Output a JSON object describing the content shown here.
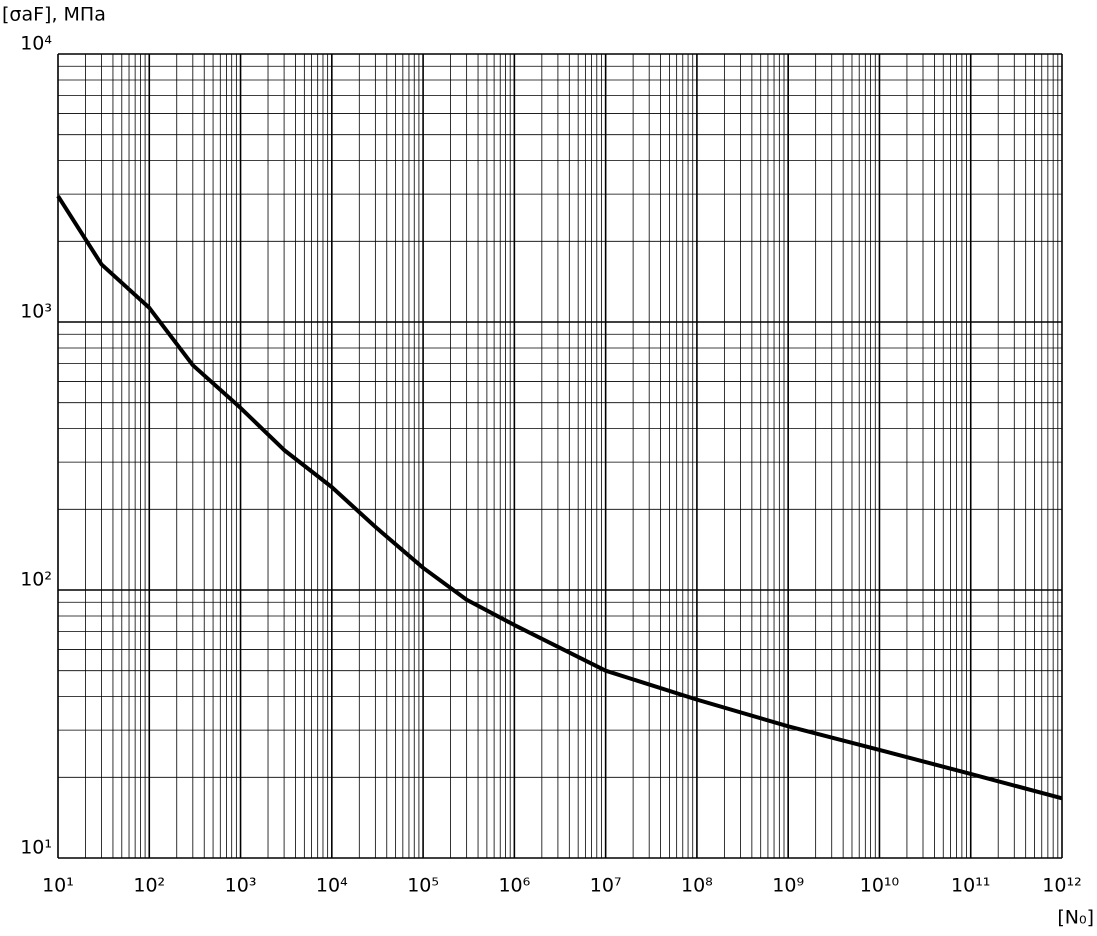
{
  "chart_data": {
    "type": "line",
    "ylabel": "[σaF], МПа",
    "xlabel": "[N₀]",
    "xscale": "log",
    "yscale": "log",
    "grid": true,
    "xlim": [
      10,
      1000000000000.0
    ],
    "ylim": [
      10,
      10000
    ],
    "xticks": [
      {
        "value": 10,
        "label": "10¹"
      },
      {
        "value": 100,
        "label": "10²"
      },
      {
        "value": 1000,
        "label": "10³"
      },
      {
        "value": 10000,
        "label": "10⁴"
      },
      {
        "value": 100000,
        "label": "10⁵"
      },
      {
        "value": 1000000,
        "label": "10⁶"
      },
      {
        "value": 10000000,
        "label": "10⁷"
      },
      {
        "value": 100000000,
        "label": "10⁸"
      },
      {
        "value": 1000000000,
        "label": "10⁹"
      },
      {
        "value": 10000000000,
        "label": "10¹⁰"
      },
      {
        "value": 100000000000,
        "label": "10¹¹"
      },
      {
        "value": 1000000000000,
        "label": "10¹²"
      }
    ],
    "yticks": [
      {
        "value": 10,
        "label": "10¹"
      },
      {
        "value": 100,
        "label": "10²"
      },
      {
        "value": 1000,
        "label": "10³"
      },
      {
        "value": 10000,
        "label": "10⁴"
      }
    ],
    "xminorticks": [
      20,
      30,
      40,
      50,
      60,
      70,
      80,
      90,
      200,
      300,
      400,
      500,
      600,
      700,
      800,
      900,
      2000.0,
      3000.0,
      4000.0,
      5000.0,
      6000.0,
      7000.0,
      8000.0,
      9000.0,
      20000.0,
      30000.0,
      40000.0,
      50000.0,
      60000.0,
      70000.0,
      80000.0,
      90000.0,
      200000.0,
      300000.0,
      400000.0,
      500000.0,
      600000.0,
      700000.0,
      800000.0,
      900000.0,
      2000000.0,
      3000000.0,
      4000000.0,
      5000000.0,
      6000000.0,
      7000000.0,
      8000000.0,
      9000000.0,
      20000000.0,
      30000000.0,
      40000000.0,
      50000000.0,
      60000000.0,
      70000000.0,
      80000000.0,
      90000000.0,
      200000000.0,
      300000000.0,
      400000000.0,
      500000000.0,
      600000000.0,
      700000000.0,
      800000000.0,
      900000000.0,
      2000000000.0,
      3000000000.0,
      4000000000.0,
      5000000000.0,
      6000000000.0,
      7000000000.0,
      8000000000.0,
      9000000000.0,
      20000000000.0,
      30000000000.0,
      40000000000.0,
      50000000000.0,
      60000000000.0,
      70000000000.0,
      80000000000.0,
      90000000000.0,
      200000000000.0,
      300000000000.0,
      400000000000.0,
      500000000000.0,
      600000000000.0,
      700000000000.0,
      800000000000.0,
      900000000000.0
    ],
    "yminorticks": [
      20,
      30,
      40,
      50,
      60,
      70,
      80,
      90,
      200,
      300,
      400,
      500,
      600,
      700,
      800,
      900,
      2000,
      3000,
      4000,
      5000,
      6000,
      7000,
      8000,
      9000
    ],
    "x": [
      10,
      30,
      100,
      300,
      1000,
      3000,
      10000,
      30000,
      100000,
      300000,
      1000000,
      10000000,
      100000000,
      1000000000,
      10000000000,
      100000000000,
      1000000000000
    ],
    "series": [
      {
        "color": "#000000",
        "values": [
          2950,
          1640,
          1130,
          690,
          478,
          333,
          242,
          172,
          121,
          92,
          74,
          50,
          39,
          31,
          25.3,
          20.6,
          16.7
        ]
      }
    ]
  }
}
